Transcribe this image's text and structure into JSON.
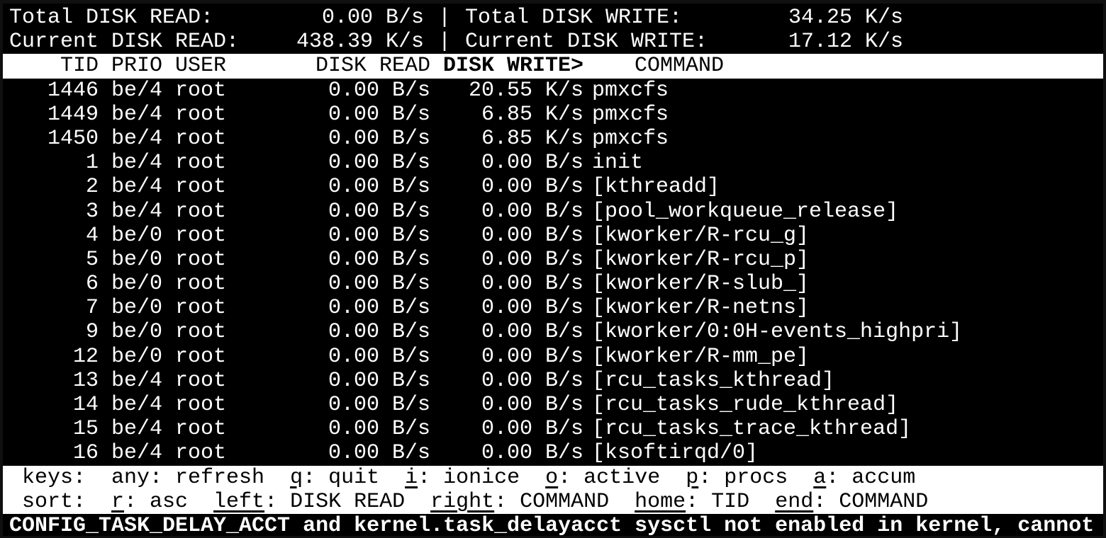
{
  "app_title": "iotop",
  "colors": {
    "terminal_background": "#000000",
    "terminal_foreground": "#ffffff",
    "inverted_background": "#ffffff",
    "inverted_foreground": "#000000",
    "window_frame": "#101010"
  },
  "summary": {
    "total_read_label": "Total DISK READ:",
    "total_read_value": "0.00 B/s",
    "total_write_label": "Total DISK WRITE:",
    "total_write_value": "34.25 K/s",
    "current_read_label": "Current DISK READ:",
    "current_read_value": "438.39 K/s",
    "current_write_label": "Current DISK WRITE:",
    "current_write_value": "17.12 K/s",
    "separator": "|"
  },
  "table": {
    "headers": {
      "tid": "TID",
      "prio": "PRIO",
      "user": "USER",
      "disk_read": "DISK READ",
      "disk_write": "DISK WRITE>",
      "command": "COMMAND"
    },
    "sort_column": "DISK WRITE",
    "sort_indicator": ">",
    "rows": [
      {
        "tid": "1446",
        "prio": "be/4",
        "user": "root",
        "disk_read": "0.00 B/s",
        "disk_write": "20.55 K/s",
        "command": "pmxcfs"
      },
      {
        "tid": "1449",
        "prio": "be/4",
        "user": "root",
        "disk_read": "0.00 B/s",
        "disk_write": "6.85 K/s",
        "command": "pmxcfs"
      },
      {
        "tid": "1450",
        "prio": "be/4",
        "user": "root",
        "disk_read": "0.00 B/s",
        "disk_write": "6.85 K/s",
        "command": "pmxcfs"
      },
      {
        "tid": "1",
        "prio": "be/4",
        "user": "root",
        "disk_read": "0.00 B/s",
        "disk_write": "0.00 B/s",
        "command": "init"
      },
      {
        "tid": "2",
        "prio": "be/4",
        "user": "root",
        "disk_read": "0.00 B/s",
        "disk_write": "0.00 B/s",
        "command": "[kthreadd]"
      },
      {
        "tid": "3",
        "prio": "be/4",
        "user": "root",
        "disk_read": "0.00 B/s",
        "disk_write": "0.00 B/s",
        "command": "[pool_workqueue_release]"
      },
      {
        "tid": "4",
        "prio": "be/0",
        "user": "root",
        "disk_read": "0.00 B/s",
        "disk_write": "0.00 B/s",
        "command": "[kworker/R-rcu_g]"
      },
      {
        "tid": "5",
        "prio": "be/0",
        "user": "root",
        "disk_read": "0.00 B/s",
        "disk_write": "0.00 B/s",
        "command": "[kworker/R-rcu_p]"
      },
      {
        "tid": "6",
        "prio": "be/0",
        "user": "root",
        "disk_read": "0.00 B/s",
        "disk_write": "0.00 B/s",
        "command": "[kworker/R-slub_]"
      },
      {
        "tid": "7",
        "prio": "be/0",
        "user": "root",
        "disk_read": "0.00 B/s",
        "disk_write": "0.00 B/s",
        "command": "[kworker/R-netns]"
      },
      {
        "tid": "9",
        "prio": "be/0",
        "user": "root",
        "disk_read": "0.00 B/s",
        "disk_write": "0.00 B/s",
        "command": "[kworker/0:0H-events_highpri]"
      },
      {
        "tid": "12",
        "prio": "be/0",
        "user": "root",
        "disk_read": "0.00 B/s",
        "disk_write": "0.00 B/s",
        "command": "[kworker/R-mm_pe]"
      },
      {
        "tid": "13",
        "prio": "be/4",
        "user": "root",
        "disk_read": "0.00 B/s",
        "disk_write": "0.00 B/s",
        "command": "[rcu_tasks_kthread]"
      },
      {
        "tid": "14",
        "prio": "be/4",
        "user": "root",
        "disk_read": "0.00 B/s",
        "disk_write": "0.00 B/s",
        "command": "[rcu_tasks_rude_kthread]"
      },
      {
        "tid": "15",
        "prio": "be/4",
        "user": "root",
        "disk_read": "0.00 B/s",
        "disk_write": "0.00 B/s",
        "command": "[rcu_tasks_trace_kthread]"
      },
      {
        "tid": "16",
        "prio": "be/4",
        "user": "root",
        "disk_read": "0.00 B/s",
        "disk_write": "0.00 B/s",
        "command": "[ksoftirqd/0]"
      }
    ]
  },
  "help": {
    "keys_label": "keys:",
    "keys": [
      {
        "key": "any",
        "label": "refresh",
        "underline": false
      },
      {
        "key": "q",
        "label": "quit",
        "underline": true
      },
      {
        "key": "i",
        "label": "ionice",
        "underline": true
      },
      {
        "key": "o",
        "label": "active",
        "underline": true
      },
      {
        "key": "p",
        "label": "procs",
        "underline": true
      },
      {
        "key": "a",
        "label": "accum",
        "underline": true
      }
    ],
    "sort_label": "sort:",
    "sort": [
      {
        "key": "r",
        "label": "asc",
        "underline": true
      },
      {
        "key": "left",
        "label": "DISK READ",
        "underline": true
      },
      {
        "key": "right",
        "label": "COMMAND",
        "underline": true
      },
      {
        "key": "home",
        "label": "TID",
        "underline": true
      },
      {
        "key": "end",
        "label": "COMMAND",
        "underline": true
      }
    ],
    "key_separator": ": "
  },
  "status_message": "CONFIG_TASK_DELAY_ACCT and kernel.task_delayacct sysctl not enabled in kernel, cannot"
}
